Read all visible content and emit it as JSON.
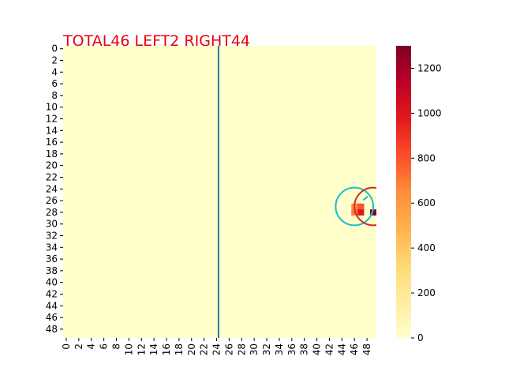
{
  "chart_data": {
    "type": "heatmap",
    "title": "TOTAL46  LEFT2 RIGHT44",
    "title_color": "#e8000b",
    "colormap": "YlOrRd",
    "colormap_stops": [
      "#ffffcc",
      "#ffeda0",
      "#fed976",
      "#feb24c",
      "#fd8d3c",
      "#fc4e2a",
      "#e31a1c",
      "#bd0026",
      "#800026"
    ],
    "grid_size": [
      50,
      50
    ],
    "background_value": 0,
    "nonzero_cells": [
      {
        "x": 46,
        "y": 27,
        "value": 650
      },
      {
        "x": 46,
        "y": 28,
        "value": 700
      },
      {
        "x": 47,
        "y": 27,
        "value": 800
      },
      {
        "x": 47,
        "y": 28,
        "value": 1000
      },
      {
        "x": 49,
        "y": 28,
        "value": 1300
      }
    ],
    "x_ticks": [
      "0",
      "2",
      "4",
      "6",
      "8",
      "10",
      "12",
      "14",
      "16",
      "18",
      "20",
      "22",
      "24",
      "26",
      "28",
      "30",
      "32",
      "34",
      "36",
      "38",
      "40",
      "42",
      "44",
      "46",
      "48"
    ],
    "y_ticks": [
      "0",
      "2",
      "4",
      "6",
      "8",
      "10",
      "12",
      "14",
      "16",
      "18",
      "20",
      "22",
      "24",
      "26",
      "28",
      "30",
      "32",
      "34",
      "36",
      "38",
      "40",
      "42",
      "44",
      "46",
      "48"
    ],
    "colorbar": {
      "range": [
        0,
        1300
      ],
      "ticks": [
        "0",
        "200",
        "400",
        "600",
        "800",
        "1000",
        "1200"
      ]
    },
    "vertical_line": {
      "x": 24.8,
      "color": "#1f77b4"
    },
    "circles": [
      {
        "cx": 46.5,
        "cy": 27.5,
        "r": 3.0,
        "color": "#17becf"
      },
      {
        "cx": 49.5,
        "cy": 27.5,
        "r": 3.0,
        "color": "#d62728"
      }
    ],
    "marker": {
      "x1": 47.9,
      "y1": 26.4,
      "x2": 48.6,
      "y2": 25.8,
      "color": "#17becf"
    }
  }
}
